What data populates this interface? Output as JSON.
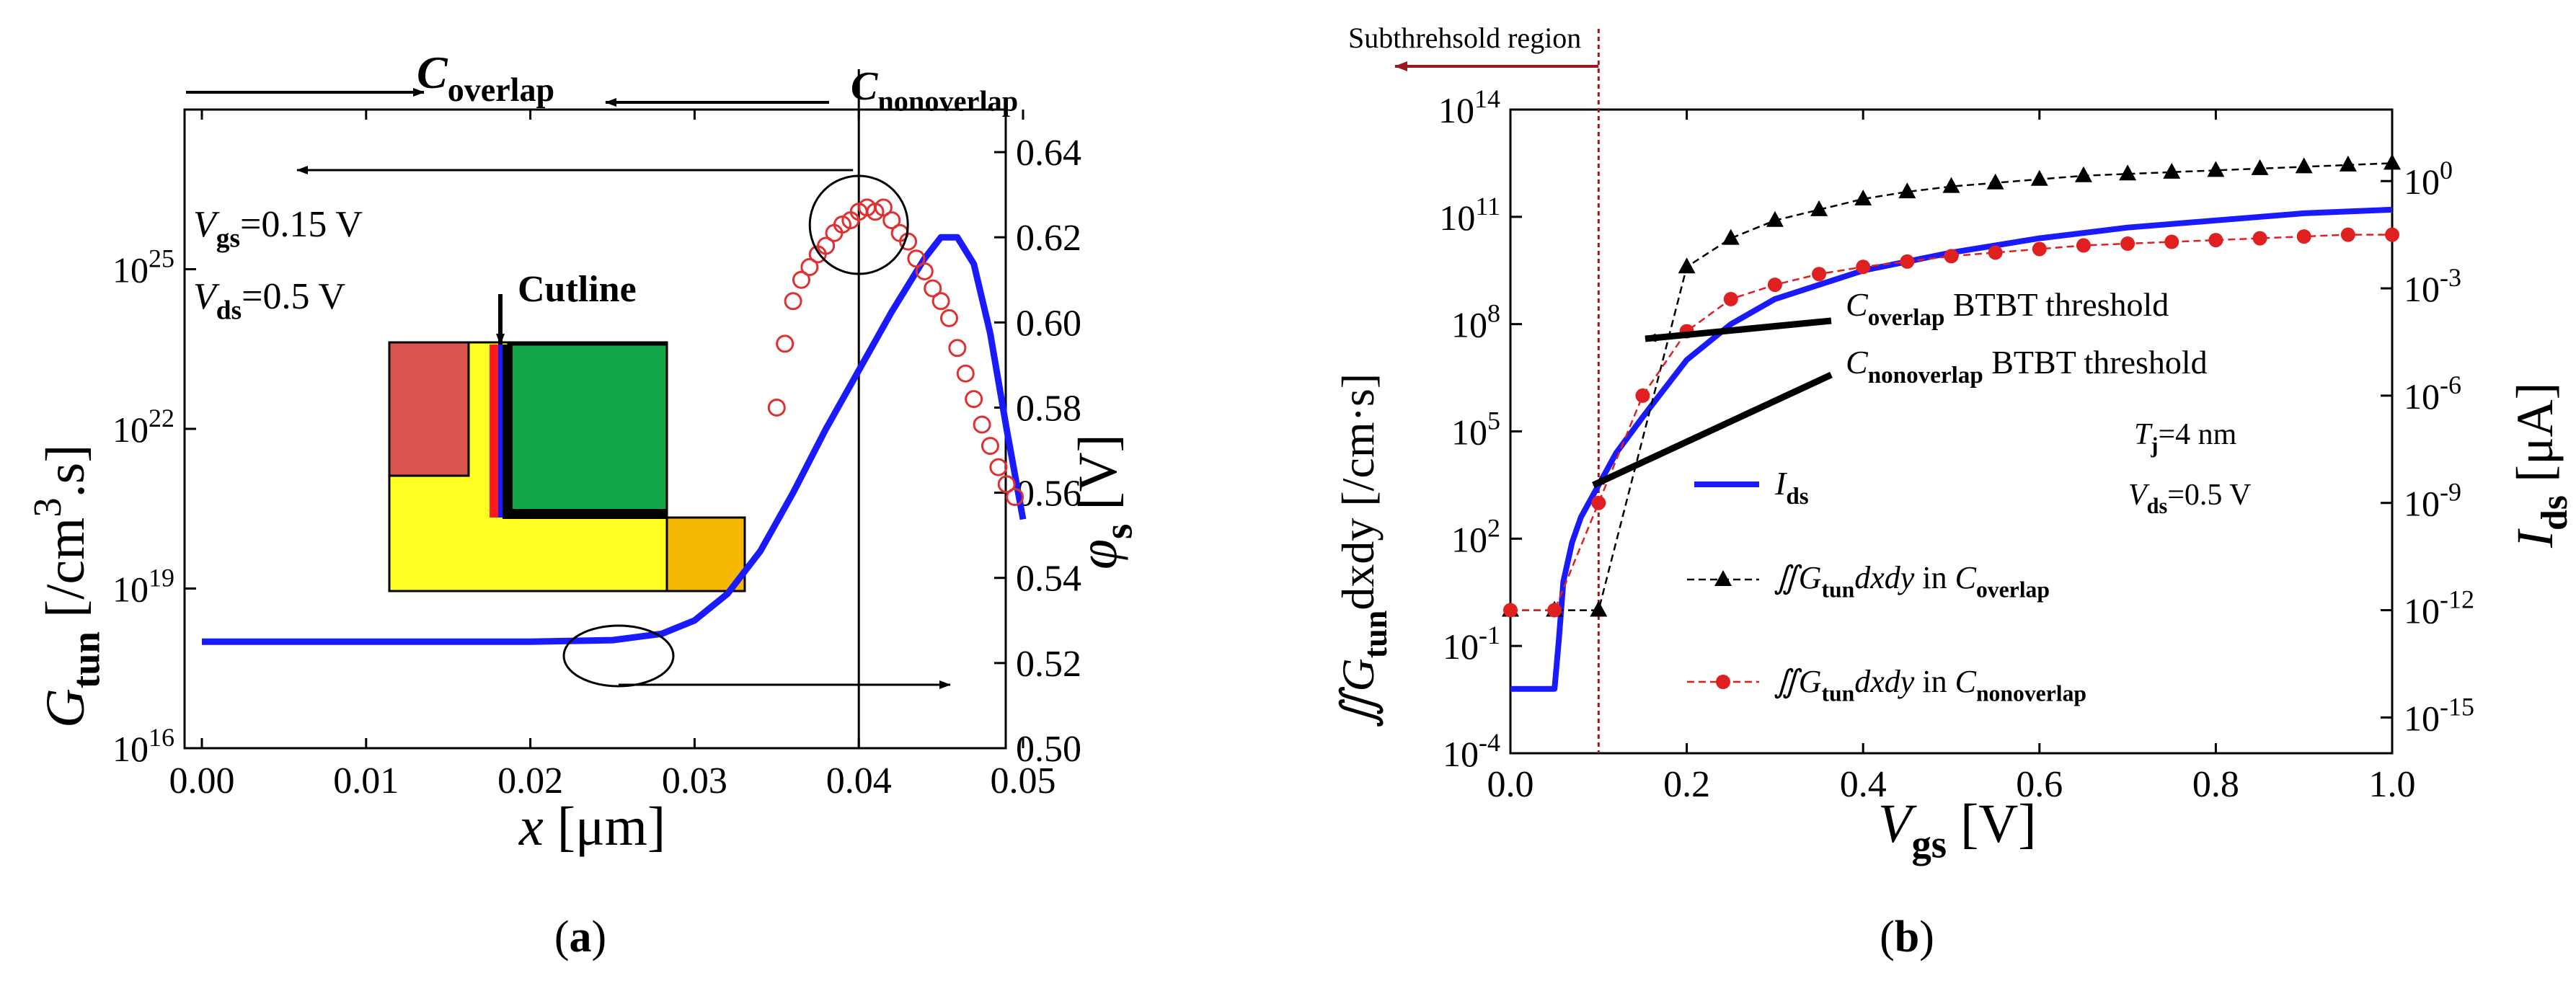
{
  "chart_data": [
    {
      "panel": "(a)",
      "type": "line+scatter",
      "xlabel": "x",
      "xlabel_unit": "[μm]",
      "ylabel": {
        "main": "G",
        "sub": "tun",
        "unit": "[/cm",
        "sup": "3",
        "tail": ".s]"
      },
      "y2label": {
        "main": "φ",
        "sub": "s",
        "unit": "[V]"
      },
      "xlim": [
        0,
        0.05
      ],
      "x_ticks": [
        "0.00",
        "0.01",
        "0.02",
        "0.03",
        "0.04",
        "0.05"
      ],
      "ylim_log10": [
        16,
        28
      ],
      "y_ticks": [
        {
          "base": "10",
          "exp": "16",
          "e": 16
        },
        {
          "base": "10",
          "exp": "19",
          "e": 19
        },
        {
          "base": "10",
          "exp": "22",
          "e": 22
        },
        {
          "base": "10",
          "exp": "25",
          "e": 25
        }
      ],
      "y2lim": [
        0.5,
        0.65
      ],
      "y2_ticks": [
        "0.50",
        "0.52",
        "0.54",
        "0.56",
        "0.58",
        "0.60",
        "0.62",
        "0.64"
      ],
      "top_labels": {
        "overlap": {
          "main": "C",
          "sub": "overlap"
        },
        "nonoverlap": {
          "main": "C",
          "sub": "nonoverlap"
        }
      },
      "boundary_x": 0.04,
      "annotations": {
        "vgs": {
          "main": "V",
          "sub": "gs",
          "value": "=0.15 V"
        },
        "vds": {
          "main": "V",
          "sub": "ds",
          "value": "=0.5 V"
        },
        "cutline": "Cutline"
      },
      "colors": {
        "gtun": "#1a1aff",
        "phi": "#e03030",
        "red_block": "#d9534f",
        "green_block": "#12a84a",
        "yellow_block": "#ffff22",
        "orange_block": "#f6b800"
      },
      "series": [
        {
          "name": "G_tun",
          "axis": "left",
          "style": "line",
          "x": [
            0.0,
            0.01,
            0.02,
            0.025,
            0.028,
            0.03,
            0.032,
            0.034,
            0.036,
            0.038,
            0.04,
            0.042,
            0.044,
            0.045,
            0.046,
            0.047,
            0.048,
            0.049,
            0.05
          ],
          "log10_y": [
            18.0,
            18.0,
            18.0,
            18.03,
            18.15,
            18.4,
            18.9,
            19.7,
            20.8,
            22.0,
            23.1,
            24.2,
            25.2,
            25.6,
            25.6,
            25.1,
            23.8,
            22.0,
            20.3
          ]
        },
        {
          "name": "φs",
          "axis": "right",
          "style": "scatter",
          "x": [
            0.035,
            0.0355,
            0.036,
            0.0365,
            0.037,
            0.0375,
            0.038,
            0.0385,
            0.039,
            0.0395,
            0.04,
            0.0405,
            0.041,
            0.0415,
            0.042,
            0.0425,
            0.043,
            0.0435,
            0.044,
            0.0445,
            0.045,
            0.0455,
            0.046,
            0.0465,
            0.047,
            0.0475,
            0.048,
            0.0485,
            0.049,
            0.0495
          ],
          "y": [
            0.58,
            0.595,
            0.605,
            0.61,
            0.613,
            0.616,
            0.618,
            0.621,
            0.623,
            0.624,
            0.626,
            0.627,
            0.626,
            0.627,
            0.624,
            0.621,
            0.619,
            0.615,
            0.612,
            0.608,
            0.605,
            0.601,
            0.594,
            0.588,
            0.582,
            0.576,
            0.571,
            0.566,
            0.562,
            0.559
          ]
        }
      ]
    },
    {
      "panel": "(b)",
      "type": "line",
      "title": "Subthrehsold region",
      "xlabel": {
        "main": "V",
        "sub": "gs",
        "unit": "[V]"
      },
      "ylabel": {
        "pre": "∬G",
        "sub": "tun",
        "post": "dxdy [/cm·s]"
      },
      "y2label": {
        "main": "I",
        "sub": "ds",
        "unit": "[μA]"
      },
      "xlim": [
        0,
        1.0
      ],
      "x_ticks": [
        "0.0",
        "0.2",
        "0.4",
        "0.6",
        "0.8",
        "1.0"
      ],
      "ylim_log10": [
        -4,
        14
      ],
      "y_ticks": [
        {
          "base": "10",
          "exp": "-4",
          "e": -4
        },
        {
          "base": "10",
          "exp": "-1",
          "e": -1
        },
        {
          "base": "10",
          "exp": "2",
          "e": 2
        },
        {
          "base": "10",
          "exp": "5",
          "e": 5
        },
        {
          "base": "10",
          "exp": "8",
          "e": 8
        },
        {
          "base": "10",
          "exp": "11",
          "e": 11
        },
        {
          "base": "10",
          "exp": "14",
          "e": 14
        }
      ],
      "y2lim_log10": [
        -16,
        2
      ],
      "y2_ticks": [
        {
          "base": "10",
          "exp": "-15",
          "e": -15
        },
        {
          "base": "10",
          "exp": "-12",
          "e": -12
        },
        {
          "base": "10",
          "exp": "-9",
          "e": -9
        },
        {
          "base": "10",
          "exp": "-6",
          "e": -6
        },
        {
          "base": "10",
          "exp": "-3",
          "e": -3
        },
        {
          "base": "10",
          "exp": "0",
          "e": 0
        }
      ],
      "vline_x": 0.1,
      "annotations": {
        "overlap_threshold": {
          "main": "C",
          "sub": "overlap",
          "text": " BTBT threshold"
        },
        "nonoverlap_threshold": {
          "main": "C",
          "sub": "nonoverlap",
          "text": "BTBT threshold"
        },
        "tj": {
          "main": "T",
          "sub": "j",
          "value": "=4 nm"
        },
        "vds": {
          "main": "V",
          "sub": "ds",
          "value": "=0.5 V"
        }
      },
      "legend": [
        {
          "main": "I",
          "sub": "ds"
        },
        {
          "pre": "∬G",
          "sub": "tun",
          "mid": "dxdy",
          "text": " in  ",
          "main": "C",
          "sub2": "overlap"
        },
        {
          "pre": "∬G",
          "sub": "tun",
          "mid": "dxdy",
          "text": " in ",
          "main": "C",
          "sub2": "nonoverlap"
        }
      ],
      "colors": {
        "ids": "#1a1aff",
        "overlap": "#000000",
        "nonoverlap": "#e02020",
        "vline": "#9b1b1b"
      },
      "series": [
        {
          "name": "Ids",
          "axis": "right",
          "style": "line",
          "x": [
            0.0,
            0.05,
            0.055,
            0.06,
            0.07,
            0.08,
            0.1,
            0.12,
            0.15,
            0.2,
            0.25,
            0.3,
            0.4,
            0.5,
            0.6,
            0.7,
            0.8,
            0.9,
            1.0
          ],
          "log10_y": [
            -14.2,
            -14.2,
            -12.8,
            -11.2,
            -10.1,
            -9.4,
            -8.5,
            -7.6,
            -6.6,
            -5.0,
            -4.0,
            -3.3,
            -2.5,
            -2.0,
            -1.6,
            -1.3,
            -1.1,
            -0.9,
            -0.8
          ]
        },
        {
          "name": "∬Gtun dxdy in C_overlap",
          "axis": "left",
          "style": "line-triangle",
          "x": [
            0.0,
            0.05,
            0.1,
            0.2,
            0.25,
            0.3,
            0.35,
            0.4,
            0.45,
            0.5,
            0.55,
            0.6,
            0.65,
            0.7,
            0.75,
            0.8,
            0.85,
            0.9,
            0.95,
            1.0
          ],
          "log10_y": [
            0.0,
            0.0,
            0.0,
            9.6,
            10.4,
            10.9,
            11.2,
            11.5,
            11.7,
            11.85,
            11.95,
            12.05,
            12.15,
            12.2,
            12.25,
            12.3,
            12.35,
            12.4,
            12.45,
            12.5
          ]
        },
        {
          "name": "∬Gtun dxdy in C_nonoverlap",
          "axis": "left",
          "style": "line-circle",
          "x": [
            0.0,
            0.05,
            0.1,
            0.15,
            0.2,
            0.25,
            0.3,
            0.35,
            0.4,
            0.45,
            0.5,
            0.55,
            0.6,
            0.65,
            0.7,
            0.75,
            0.8,
            0.85,
            0.9,
            0.95,
            1.0
          ],
          "log10_y": [
            0.0,
            0.0,
            3.0,
            6.0,
            7.8,
            8.7,
            9.1,
            9.4,
            9.6,
            9.75,
            9.9,
            10.0,
            10.1,
            10.2,
            10.25,
            10.3,
            10.35,
            10.4,
            10.45,
            10.5,
            10.5
          ]
        }
      ]
    }
  ],
  "captions": {
    "a": "a",
    "b": "b"
  }
}
